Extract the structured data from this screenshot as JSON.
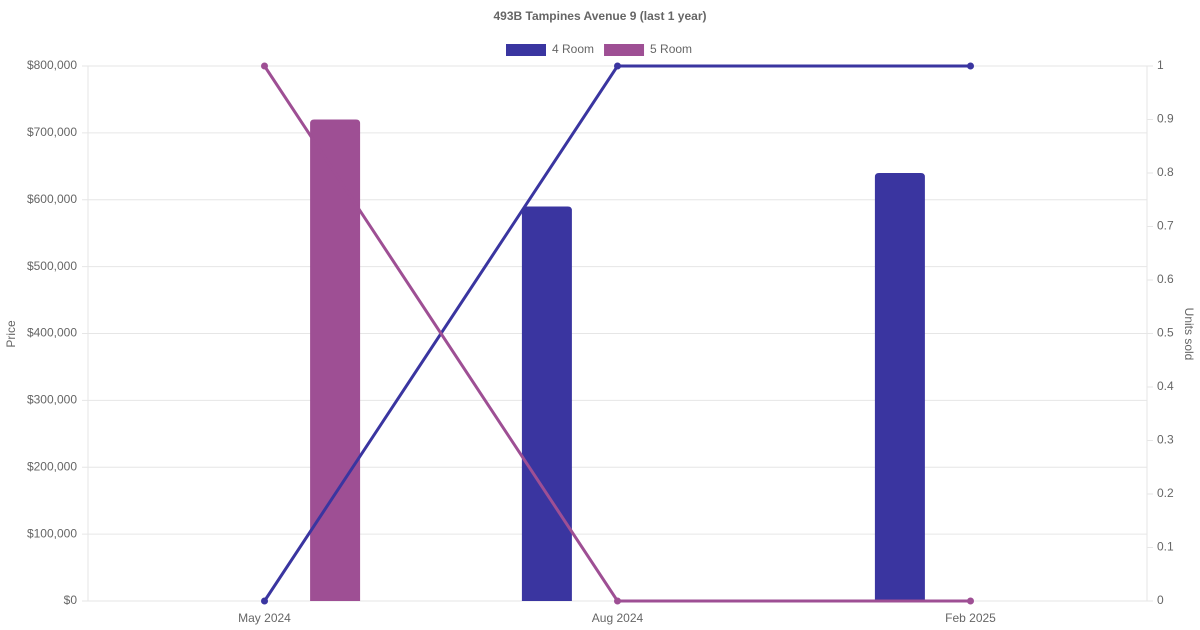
{
  "chart_data": {
    "type": "bar-line",
    "title": "493B Tampines Avenue 9 (last 1 year)",
    "categories": [
      "May 2024",
      "Aug 2024",
      "Feb 2025"
    ],
    "series": [
      {
        "name": "4 Room",
        "color": "#3a35a0",
        "values": [
          null,
          590000,
          640000
        ],
        "units": [
          0,
          1,
          1
        ]
      },
      {
        "name": "5 Room",
        "color": "#9e4f94",
        "values": [
          720000,
          null,
          null
        ],
        "units": [
          1,
          0,
          0
        ]
      }
    ],
    "ylabel": "Price",
    "y2label": "Units sold",
    "ylim": [
      0,
      800000
    ],
    "yticks": [
      {
        "value": 0,
        "label": "$0"
      },
      {
        "value": 100000,
        "label": "$100,000"
      },
      {
        "value": 200000,
        "label": "$200,000"
      },
      {
        "value": 300000,
        "label": "$300,000"
      },
      {
        "value": 400000,
        "label": "$400,000"
      },
      {
        "value": 500000,
        "label": "$500,000"
      },
      {
        "value": 600000,
        "label": "$600,000"
      },
      {
        "value": 700000,
        "label": "$700,000"
      },
      {
        "value": 800000,
        "label": "$800,000"
      }
    ],
    "y2lim": [
      0,
      1
    ],
    "y2ticks": [
      0,
      0.1,
      0.2,
      0.3,
      0.4,
      0.5,
      0.6,
      0.7,
      0.8,
      0.9,
      1
    ],
    "grid": true,
    "legend": "top"
  }
}
